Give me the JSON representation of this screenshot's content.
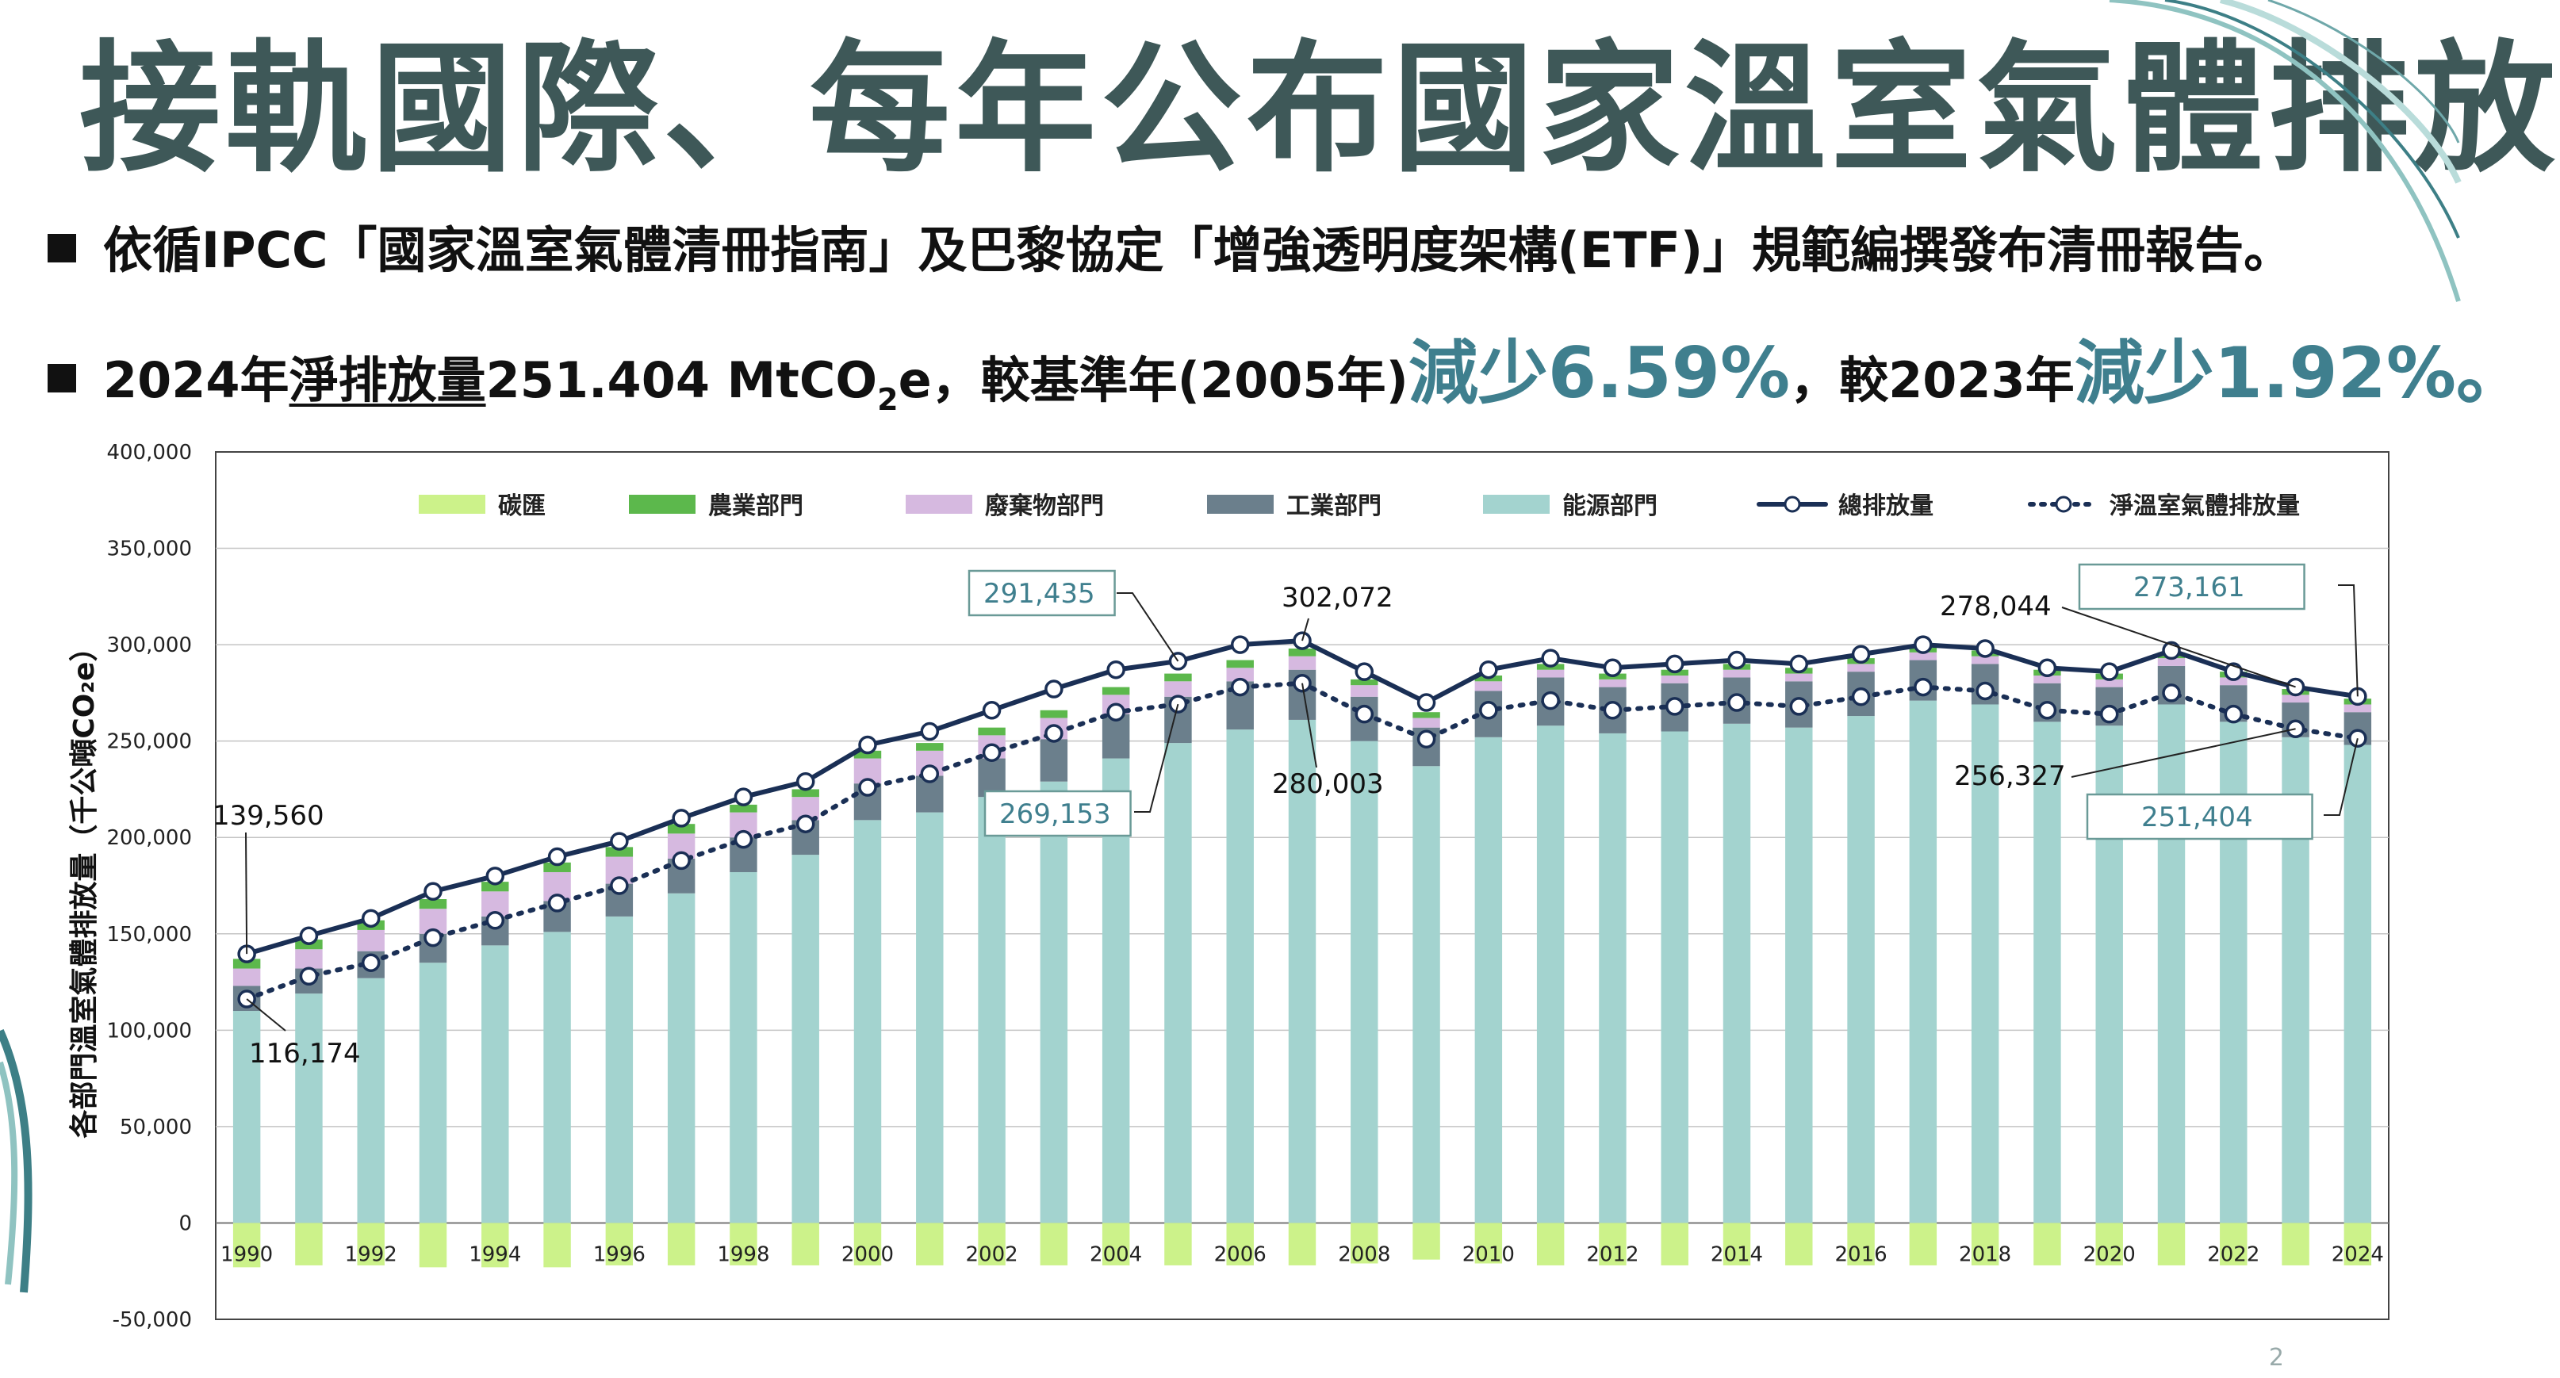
{
  "title": "接軌國際、每年公布國家溫室氣體排放",
  "bullet1": {
    "text": "依循IPCC「國家溫室氣體清冊指南」及巴黎協定「增強透明度架構(ETF)」規範編撰發布清冊報告。"
  },
  "bullet2": {
    "part1": "2024年",
    "underlined": "淨排放量",
    "part2": "251.404 MtCO",
    "subscript": "2",
    "part3": "e，較基準年(2005年)",
    "highlight1": "減少6.59%",
    "part4": "，較2023年",
    "highlight2": "減少1.92%。"
  },
  "page_number": "2",
  "colors": {
    "title": "#3e5858",
    "highlight": "#3f7f8e",
    "energy": "#a3d3cf",
    "industry": "#6b7f8c",
    "waste": "#d6b9e0",
    "agriculture": "#5cb84c",
    "carbon_sink": "#ccf28a",
    "total_line": "#1a2f55",
    "net_line": "#1a2f55",
    "callout_border": "#6a9a97"
  },
  "chart_data": {
    "type": "bar",
    "ylabel": "各部門溫室氣體排放量（千公噸CO₂e）",
    "ylim": [
      -50000,
      400000
    ],
    "yticks": [
      "400,000",
      "350,000",
      "300,000",
      "250,000",
      "200,000",
      "150,000",
      "100,000",
      "50,000",
      "0",
      "-50,000"
    ],
    "ytick_values": [
      400000,
      350000,
      300000,
      250000,
      200000,
      150000,
      100000,
      50000,
      0,
      -50000
    ],
    "xtick_labels": [
      "1990",
      "1992",
      "1994",
      "1996",
      "1998",
      "2000",
      "2002",
      "2004",
      "2006",
      "2008",
      "2010",
      "2012",
      "2014",
      "2016",
      "2018",
      "2020",
      "2022",
      "2024"
    ],
    "grid": true,
    "legend_position": "top",
    "legend": [
      "碳匯",
      "農業部門",
      "廢棄物部門",
      "工業部門",
      "能源部門",
      "總排放量",
      "淨溫室氣體排放量"
    ],
    "years": [
      1990,
      1991,
      1992,
      1993,
      1994,
      1995,
      1996,
      1997,
      1998,
      1999,
      2000,
      2001,
      2002,
      2003,
      2004,
      2005,
      2006,
      2007,
      2008,
      2009,
      2010,
      2011,
      2012,
      2013,
      2014,
      2015,
      2016,
      2017,
      2018,
      2019,
      2020,
      2021,
      2022,
      2023,
      2024
    ],
    "series": [
      {
        "name": "能源部門",
        "values": [
          110000,
          119000,
          127000,
          135000,
          144000,
          151000,
          159000,
          171000,
          182000,
          191000,
          209000,
          213000,
          221000,
          229000,
          241000,
          249000,
          256000,
          261000,
          250000,
          237000,
          252000,
          258000,
          254000,
          255000,
          259000,
          257000,
          263000,
          271000,
          269000,
          260000,
          258000,
          269000,
          260000,
          252000,
          248000
        ]
      },
      {
        "name": "工業部門",
        "values": [
          13000,
          13000,
          14000,
          15000,
          15000,
          16000,
          17000,
          18000,
          18000,
          18000,
          19000,
          19000,
          20000,
          22000,
          23000,
          24000,
          25000,
          26000,
          23000,
          20000,
          24000,
          25000,
          24000,
          25000,
          24000,
          24000,
          23000,
          21000,
          21000,
          20000,
          20000,
          20000,
          19000,
          18000,
          17000
        ]
      },
      {
        "name": "廢棄物部門",
        "values": [
          9000,
          10000,
          11000,
          13000,
          13000,
          15000,
          14000,
          13000,
          13000,
          12000,
          13000,
          13000,
          12000,
          11000,
          10000,
          8000,
          7000,
          7000,
          6000,
          5000,
          5000,
          4000,
          4000,
          4000,
          4000,
          4000,
          4000,
          4000,
          4000,
          4000,
          4000,
          4000,
          4000,
          4000,
          4000
        ]
      },
      {
        "name": "農業部門",
        "values": [
          5000,
          5000,
          5000,
          5000,
          5000,
          5000,
          5000,
          5000,
          4000,
          4000,
          4000,
          4000,
          4000,
          4000,
          4000,
          4000,
          4000,
          4000,
          3000,
          3000,
          3000,
          3000,
          3000,
          3000,
          3000,
          3000,
          3000,
          3000,
          3000,
          3000,
          3000,
          3000,
          3000,
          3000,
          3000
        ]
      },
      {
        "name": "碳匯",
        "values": [
          -23000,
          -22000,
          -22000,
          -23000,
          -23000,
          -23000,
          -22000,
          -22000,
          -22000,
          -22000,
          -22000,
          -22000,
          -22000,
          -22000,
          -22000,
          -22000,
          -22000,
          -22000,
          -21000,
          -19000,
          -21000,
          -22000,
          -22000,
          -22000,
          -22000,
          -22000,
          -22000,
          -22000,
          -22000,
          -22000,
          -22000,
          -22000,
          -22000,
          -22000,
          -22000
        ]
      },
      {
        "name": "總排放量",
        "values": [
          139560,
          149000,
          158000,
          172000,
          180000,
          190000,
          198000,
          210000,
          221000,
          229000,
          248000,
          255000,
          266000,
          277000,
          287000,
          291435,
          300000,
          302072,
          286000,
          270000,
          287000,
          293000,
          288000,
          290000,
          292000,
          290000,
          295000,
          300000,
          298000,
          288000,
          286000,
          297000,
          286000,
          278044,
          273161
        ]
      },
      {
        "name": "淨溫室氣體排放量",
        "values": [
          116174,
          128000,
          135000,
          148000,
          157000,
          166000,
          175000,
          188000,
          199000,
          207000,
          226000,
          233000,
          244000,
          254000,
          265000,
          269153,
          278000,
          280003,
          264000,
          251000,
          266000,
          271000,
          266000,
          268000,
          270000,
          268000,
          273000,
          278000,
          276000,
          266000,
          264000,
          275000,
          264000,
          256327,
          251404
        ]
      }
    ],
    "annotations": [
      "139,560",
      "116,174",
      "291,435",
      "269,153",
      "302,072",
      "280,003",
      "278,044",
      "256,327",
      "273,161",
      "251,404"
    ]
  }
}
